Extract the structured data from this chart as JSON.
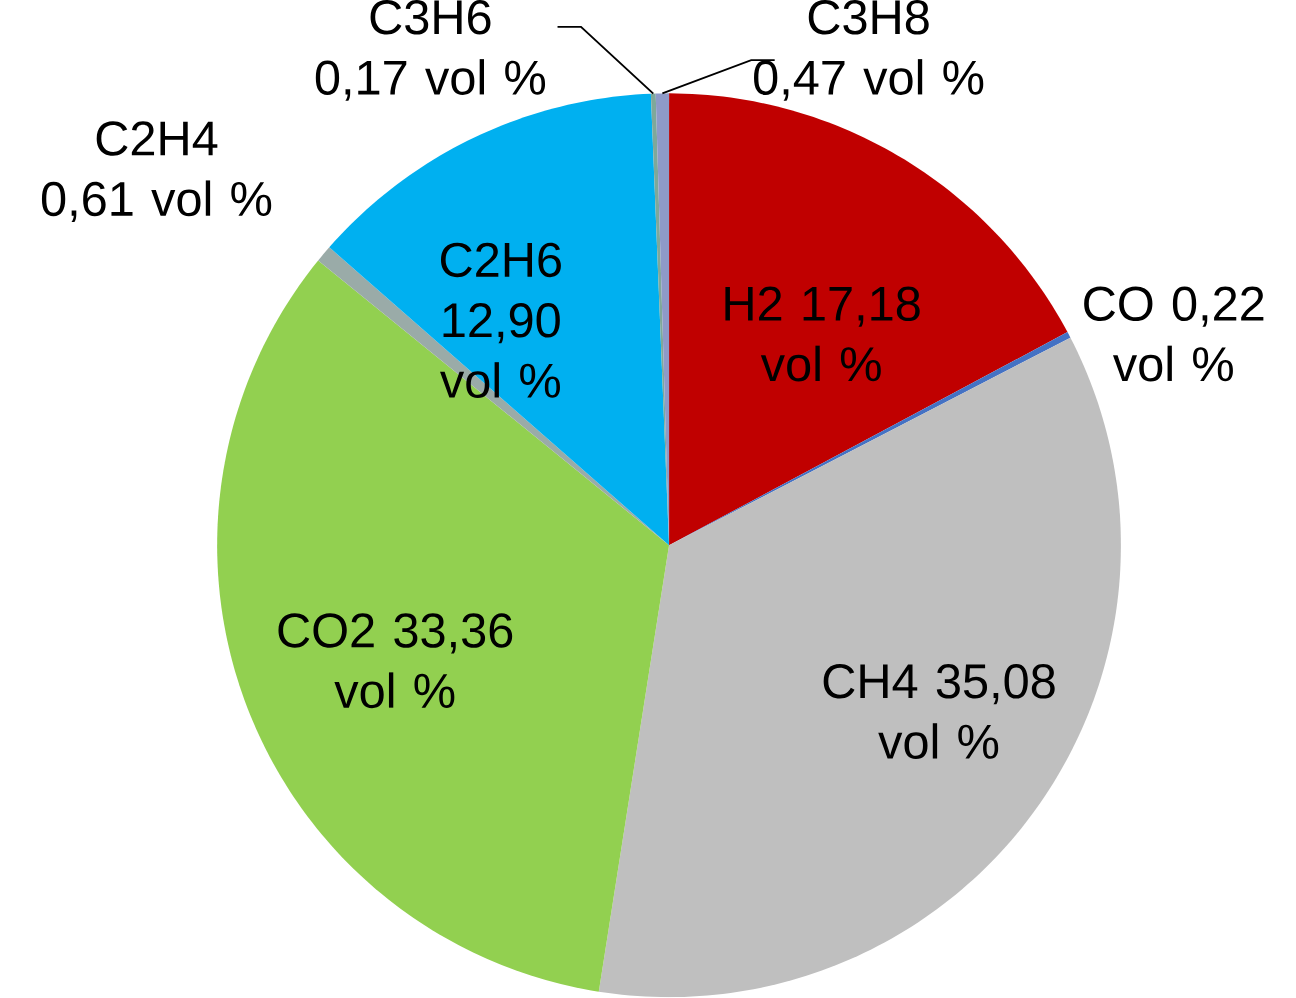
{
  "chart_data": {
    "type": "pie",
    "categories": [
      "H2",
      "CO",
      "CH4",
      "CO2",
      "C2H4",
      "C2H6",
      "C3H6",
      "C3H8"
    ],
    "values": [
      17.18,
      0.22,
      35.08,
      33.36,
      0.61,
      12.9,
      0.17,
      0.47
    ],
    "value_labels": [
      "17,18 vol %",
      "0,22 vol %",
      "35,08 vol %",
      "33,36 vol %",
      "0,61 vol %",
      "12,90 vol %",
      "0,17 vol %",
      "0,47 vol %"
    ],
    "colors": [
      "#c00000",
      "#4472c4",
      "#bfbfbf",
      "#92d050",
      "#9aaba8",
      "#00b0f0",
      "#7fa89a",
      "#8e9ac8"
    ]
  }
}
